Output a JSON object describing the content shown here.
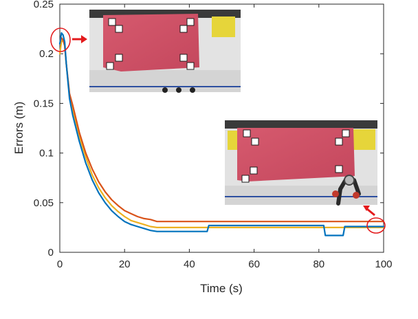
{
  "chart_data": {
    "type": "line",
    "title": "",
    "xlabel": "Time (s)",
    "ylabel": "Errors (m)",
    "xlim": [
      0,
      100
    ],
    "ylim": [
      0,
      0.25
    ],
    "x_ticks": [
      0,
      20,
      40,
      60,
      80,
      100
    ],
    "y_ticks": [
      0,
      0.05,
      0.1,
      0.15,
      0.2,
      0.25
    ],
    "x_tick_labels": [
      "0",
      "20",
      "40",
      "60",
      "80",
      "100"
    ],
    "y_tick_labels": [
      "0",
      "0.05",
      "0.1",
      "0.15",
      "0.2",
      "0.25"
    ],
    "grid": false,
    "legend": "none",
    "series": [
      {
        "color": "#0072BD",
        "x": [
          0,
          0.5,
          1,
          1.5,
          2,
          3,
          4,
          6,
          8,
          10,
          12,
          14,
          16,
          18,
          20,
          22,
          24,
          26,
          28,
          30,
          35,
          40,
          45.5,
          46,
          50,
          60,
          70,
          80,
          81.5,
          82,
          85,
          87.5,
          88,
          90,
          95,
          100
        ],
        "y": [
          0.21,
          0.221,
          0.219,
          0.212,
          0.19,
          0.155,
          0.138,
          0.112,
          0.09,
          0.073,
          0.06,
          0.05,
          0.042,
          0.036,
          0.031,
          0.028,
          0.026,
          0.024,
          0.022,
          0.021,
          0.021,
          0.021,
          0.021,
          0.027,
          0.027,
          0.027,
          0.027,
          0.027,
          0.027,
          0.017,
          0.017,
          0.017,
          0.026,
          0.026,
          0.026,
          0.026
        ]
      },
      {
        "color": "#D95319",
        "x": [
          0,
          0.5,
          1,
          1.5,
          2,
          3,
          4,
          6,
          8,
          10,
          12,
          14,
          16,
          18,
          20,
          22,
          24,
          26,
          28,
          30,
          40,
          50,
          60,
          70,
          80,
          90,
          100
        ],
        "y": [
          0.21,
          0.216,
          0.214,
          0.208,
          0.19,
          0.16,
          0.148,
          0.121,
          0.1,
          0.084,
          0.071,
          0.061,
          0.053,
          0.047,
          0.042,
          0.039,
          0.036,
          0.034,
          0.033,
          0.031,
          0.031,
          0.031,
          0.031,
          0.031,
          0.031,
          0.031,
          0.031
        ]
      },
      {
        "color": "#EDB120",
        "x": [
          0,
          0.5,
          1,
          1.5,
          2,
          3,
          4,
          6,
          8,
          10,
          12,
          14,
          16,
          18,
          20,
          22,
          24,
          26,
          28,
          30,
          40,
          50,
          60,
          70,
          80,
          90,
          100
        ],
        "y": [
          0.2,
          0.212,
          0.214,
          0.208,
          0.19,
          0.158,
          0.144,
          0.117,
          0.096,
          0.078,
          0.065,
          0.055,
          0.047,
          0.041,
          0.036,
          0.032,
          0.03,
          0.028,
          0.026,
          0.025,
          0.025,
          0.025,
          0.025,
          0.025,
          0.025,
          0.025,
          0.025
        ]
      }
    ],
    "annotations": [
      {
        "kind": "circle-marker",
        "x": 0.5,
        "y": 0.214,
        "color": "#e31a1c"
      },
      {
        "kind": "circle-marker",
        "x": 99,
        "y": 0.027,
        "color": "#e31a1c"
      }
    ],
    "inset_photos": [
      {
        "subject": "red-cloth-with-markers-initial",
        "links_to": "start"
      },
      {
        "subject": "red-cloth-with-markers-final-robot",
        "links_to": "end"
      }
    ]
  }
}
